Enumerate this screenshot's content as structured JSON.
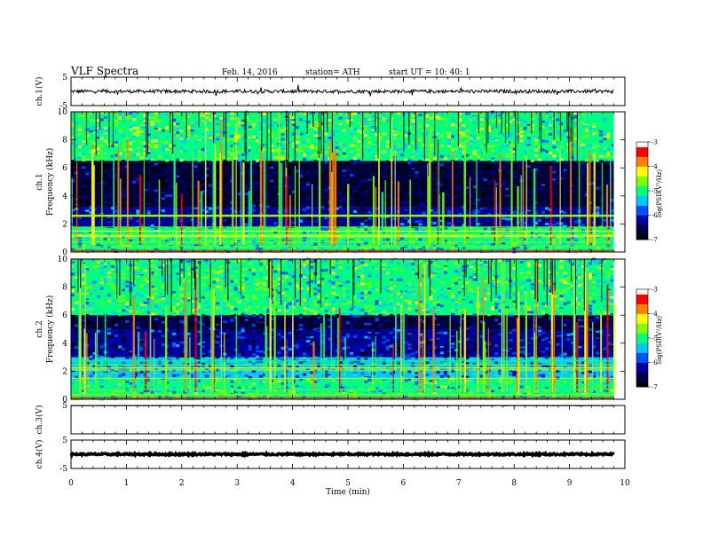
{
  "header": {
    "title": "VLF  Spectra",
    "date": "Feb. 14, 2016",
    "station": "station= ATH",
    "start": "start  UT  =    10: 40: 1"
  },
  "chart_data": [
    {
      "type": "line",
      "id": "ch1",
      "ylabel": "ch.1(V)",
      "ylim": [
        -5,
        5
      ],
      "yticks": [
        "5",
        "-5"
      ],
      "xlim": [
        0,
        10
      ],
      "level_v": 0,
      "noise_v": 0.6
    },
    {
      "type": "heatmap",
      "id": "spec1",
      "ylabel_line1": "ch.1",
      "ylabel_line2": "Frequency  (kHz)",
      "ylim": [
        0,
        10
      ],
      "yticks": [
        "0",
        "2",
        "4",
        "6",
        "8",
        "10"
      ],
      "xlim": [
        0,
        9.8
      ],
      "colorbar": {
        "label": "log(PSD(V²/Hz)",
        "range": [
          -7,
          -3
        ],
        "ticks": [
          "-3",
          "-4",
          "-5",
          "-6",
          "-7"
        ]
      },
      "bands": [
        {
          "f_khz": [
            0,
            1.8
          ],
          "log_psd": -5.2
        },
        {
          "f_khz": [
            1.8,
            3.2
          ],
          "log_psd": -6.2
        },
        {
          "f_khz": [
            3.2,
            6.5
          ],
          "log_psd": -6.7
        },
        {
          "f_khz": [
            6.5,
            10
          ],
          "log_psd": -4.9
        }
      ]
    },
    {
      "type": "heatmap",
      "id": "spec2",
      "ylabel_line1": "ch.2",
      "ylabel_line2": "Frequency  (kHz)",
      "ylim": [
        0,
        10
      ],
      "yticks": [
        "0",
        "2",
        "4",
        "6",
        "8",
        "10"
      ],
      "xlim": [
        0,
        9.8
      ],
      "colorbar": {
        "label": "log(PSD(V²/Hz)",
        "range": [
          -7,
          -3
        ],
        "ticks": [
          "-3",
          "-4",
          "-5",
          "-6",
          "-7"
        ]
      },
      "bands": [
        {
          "f_khz": [
            0,
            1.5
          ],
          "log_psd": -5.1
        },
        {
          "f_khz": [
            1.5,
            3.0
          ],
          "log_psd": -5.6
        },
        {
          "f_khz": [
            3.0,
            5.0
          ],
          "log_psd": -6.3
        },
        {
          "f_khz": [
            5.0,
            6.0
          ],
          "log_psd": -6.5
        },
        {
          "f_khz": [
            6.0,
            10
          ],
          "log_psd": -5.0
        }
      ]
    },
    {
      "type": "line",
      "id": "ch3",
      "ylabel": "ch.3(V)",
      "ylim": [
        -5,
        5
      ],
      "yticks": [
        "5"
      ],
      "xlim": [
        0,
        10
      ],
      "level_v": 4.9,
      "noise_v": 0.05
    },
    {
      "type": "line",
      "id": "ch4",
      "ylabel": "ch.4(V)",
      "ylim": [
        -5,
        5
      ],
      "yticks": [
        "5",
        "-5"
      ],
      "xlim": [
        0,
        10
      ],
      "level_v": 0,
      "noise_v": 0.3
    }
  ],
  "xaxis": {
    "label": "Time  (min)",
    "ticks": [
      "0",
      "1",
      "2",
      "3",
      "4",
      "5",
      "6",
      "7",
      "8",
      "9",
      "10"
    ]
  },
  "colors": {
    "colormap": [
      "#000000",
      "#000040",
      "#0000a0",
      "#0050ff",
      "#00c8ff",
      "#00ff80",
      "#80ff00",
      "#ffff00",
      "#ff8000",
      "#ff0000",
      "#ffffff"
    ]
  }
}
